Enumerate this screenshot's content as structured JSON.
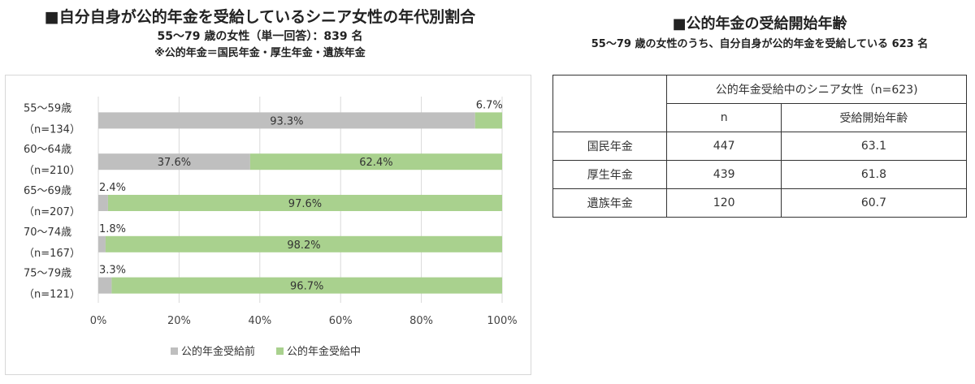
{
  "left_titles": {
    "title": "■自分自身が公的年金を受給しているシニア女性の年代別割合",
    "subtitle": "55～79 歳の女性（単一回答）：839 名",
    "note": "※公的年金＝国民年金・厚生年金・遺族年金"
  },
  "chart_data": {
    "type": "bar",
    "orientation": "horizontal",
    "stacked": true,
    "percent": true,
    "categories": [
      [
        "55～59歳",
        "（n=134）"
      ],
      [
        "60～64歳",
        "（n=210）"
      ],
      [
        "65～69歳",
        "（n=207）"
      ],
      [
        "70～74歳",
        "（n=167）"
      ],
      [
        "75～79歳",
        "（n=121）"
      ]
    ],
    "series": [
      {
        "name": "公的年金受給前",
        "color": "#bfbfbf",
        "values": [
          93.3,
          37.6,
          2.4,
          1.8,
          3.3
        ],
        "labels": [
          "93.3%",
          "37.6%",
          "2.4%",
          "1.8%",
          "3.3%"
        ]
      },
      {
        "name": "公的年金受給中",
        "color": "#a9d18e",
        "values": [
          6.7,
          62.4,
          97.6,
          98.2,
          96.7
        ],
        "labels": [
          "6.7%",
          "62.4%",
          "97.6%",
          "98.2%",
          "96.7%"
        ]
      }
    ],
    "xlim": [
      0,
      100
    ],
    "xticks": [
      "0%",
      "20%",
      "40%",
      "60%",
      "80%",
      "100%"
    ],
    "grid": true,
    "legend": "bottom"
  },
  "right_titles": {
    "title": "■公的年金の受給開始年齢",
    "subtitle": "55～79 歳の女性のうち、自分自身が公的年金を受給している 623 名"
  },
  "table": {
    "group_header": "公的年金受給中のシニア女性（n=623)",
    "col_headers": [
      "n",
      "受給開始年齢"
    ],
    "rows": [
      {
        "label": "国民年金",
        "n": "447",
        "age": "63.1"
      },
      {
        "label": "厚生年金",
        "n": "439",
        "age": "61.8"
      },
      {
        "label": "遺族年金",
        "n": "120",
        "age": "60.7"
      }
    ]
  }
}
